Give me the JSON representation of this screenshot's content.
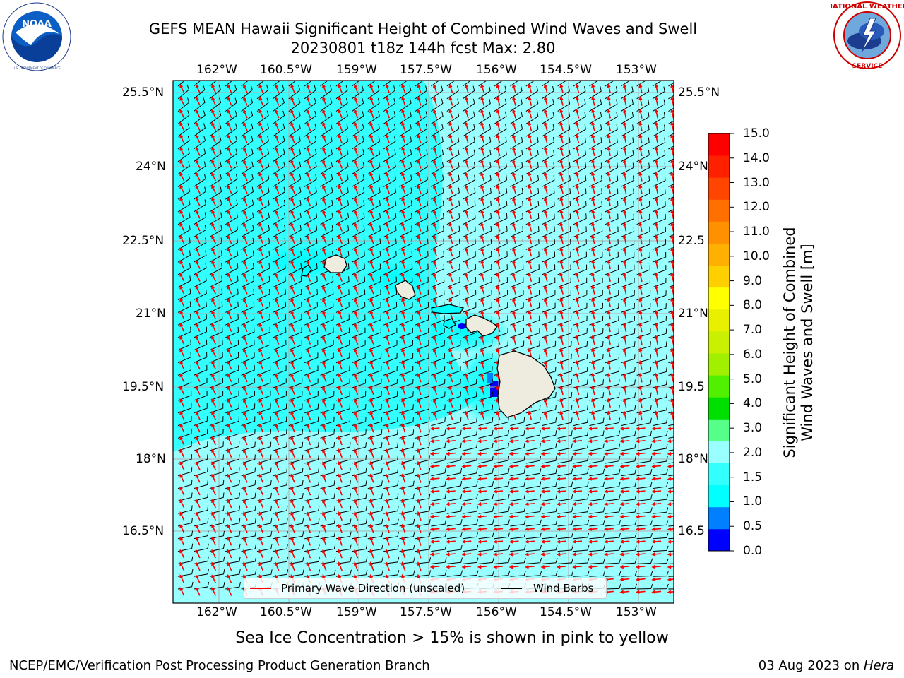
{
  "header": {
    "title_line1": "GEFS MEAN Hawaii Significant Height of Combined Wind Waves and Swell",
    "title_line2": "20230801 t18z 144h fcst   Max: 2.80"
  },
  "logos": {
    "noaa_text": "NOAA",
    "noaa_ring_text": "NATIONAL OCEANIC AND ATMOSPHERIC ADMINISTRATION · U.S. DEPARTMENT OF COMMERCE",
    "nws_ring_text": "NATIONAL WEATHER SERVICE"
  },
  "map": {
    "lon_ticks": [
      "162°W",
      "160.5°W",
      "159°W",
      "157.5°W",
      "156°W",
      "154.5°W",
      "153°W"
    ],
    "lat_ticks_left": [
      "25.5°N",
      "24°N",
      "22.5°N",
      "21°N",
      "19.5°N",
      "18°N",
      "16.5°N"
    ],
    "lat_ticks_right": [
      "25.5°N",
      "24°N",
      "22.5",
      "21°N",
      "19.5",
      "18°N",
      "16.5"
    ],
    "colors": {
      "ocean_swell": "#99ffff",
      "ocean_moderate": "#33ffff",
      "ocean_low": "#00ffff",
      "land": "#eeebdf",
      "wave_direction": "#ff0000",
      "wind_barb": "#000000",
      "gridline": "#b0b0b0"
    }
  },
  "legend": {
    "primary_wave": "Primary Wave Direction (unscaled)",
    "wind_barbs": "Wind Barbs"
  },
  "colorbar": {
    "title_line1": "Significant Height of Combined",
    "title_line2": "Wind Waves and Swell [m]",
    "labels": [
      "15.0",
      "14.0",
      "13.0",
      "12.0",
      "11.0",
      "10.0",
      "9.0",
      "8.0",
      "7.0",
      "6.0",
      "5.0",
      "4.0",
      "3.0",
      "2.0",
      "1.5",
      "1.0",
      "0.5",
      "0.0"
    ],
    "colors": [
      "#0000ff",
      "#0080ff",
      "#00ffff",
      "#33ffff",
      "#99ffff",
      "#55ff88",
      "#00e000",
      "#50f000",
      "#a0f000",
      "#c8f000",
      "#e8f000",
      "#ffff00",
      "#ffd000",
      "#ffb000",
      "#ff9000",
      "#ff7000",
      "#ff4500",
      "#ff2000",
      "#ff0000"
    ]
  },
  "subtitle": "Sea Ice Concentration > 15% is shown in pink to yellow",
  "footer": {
    "left": "NCEP/EMC/Verification Post Processing Product Generation Branch",
    "right_prefix": "03 Aug 2023 on ",
    "right_machine": "Hera"
  }
}
